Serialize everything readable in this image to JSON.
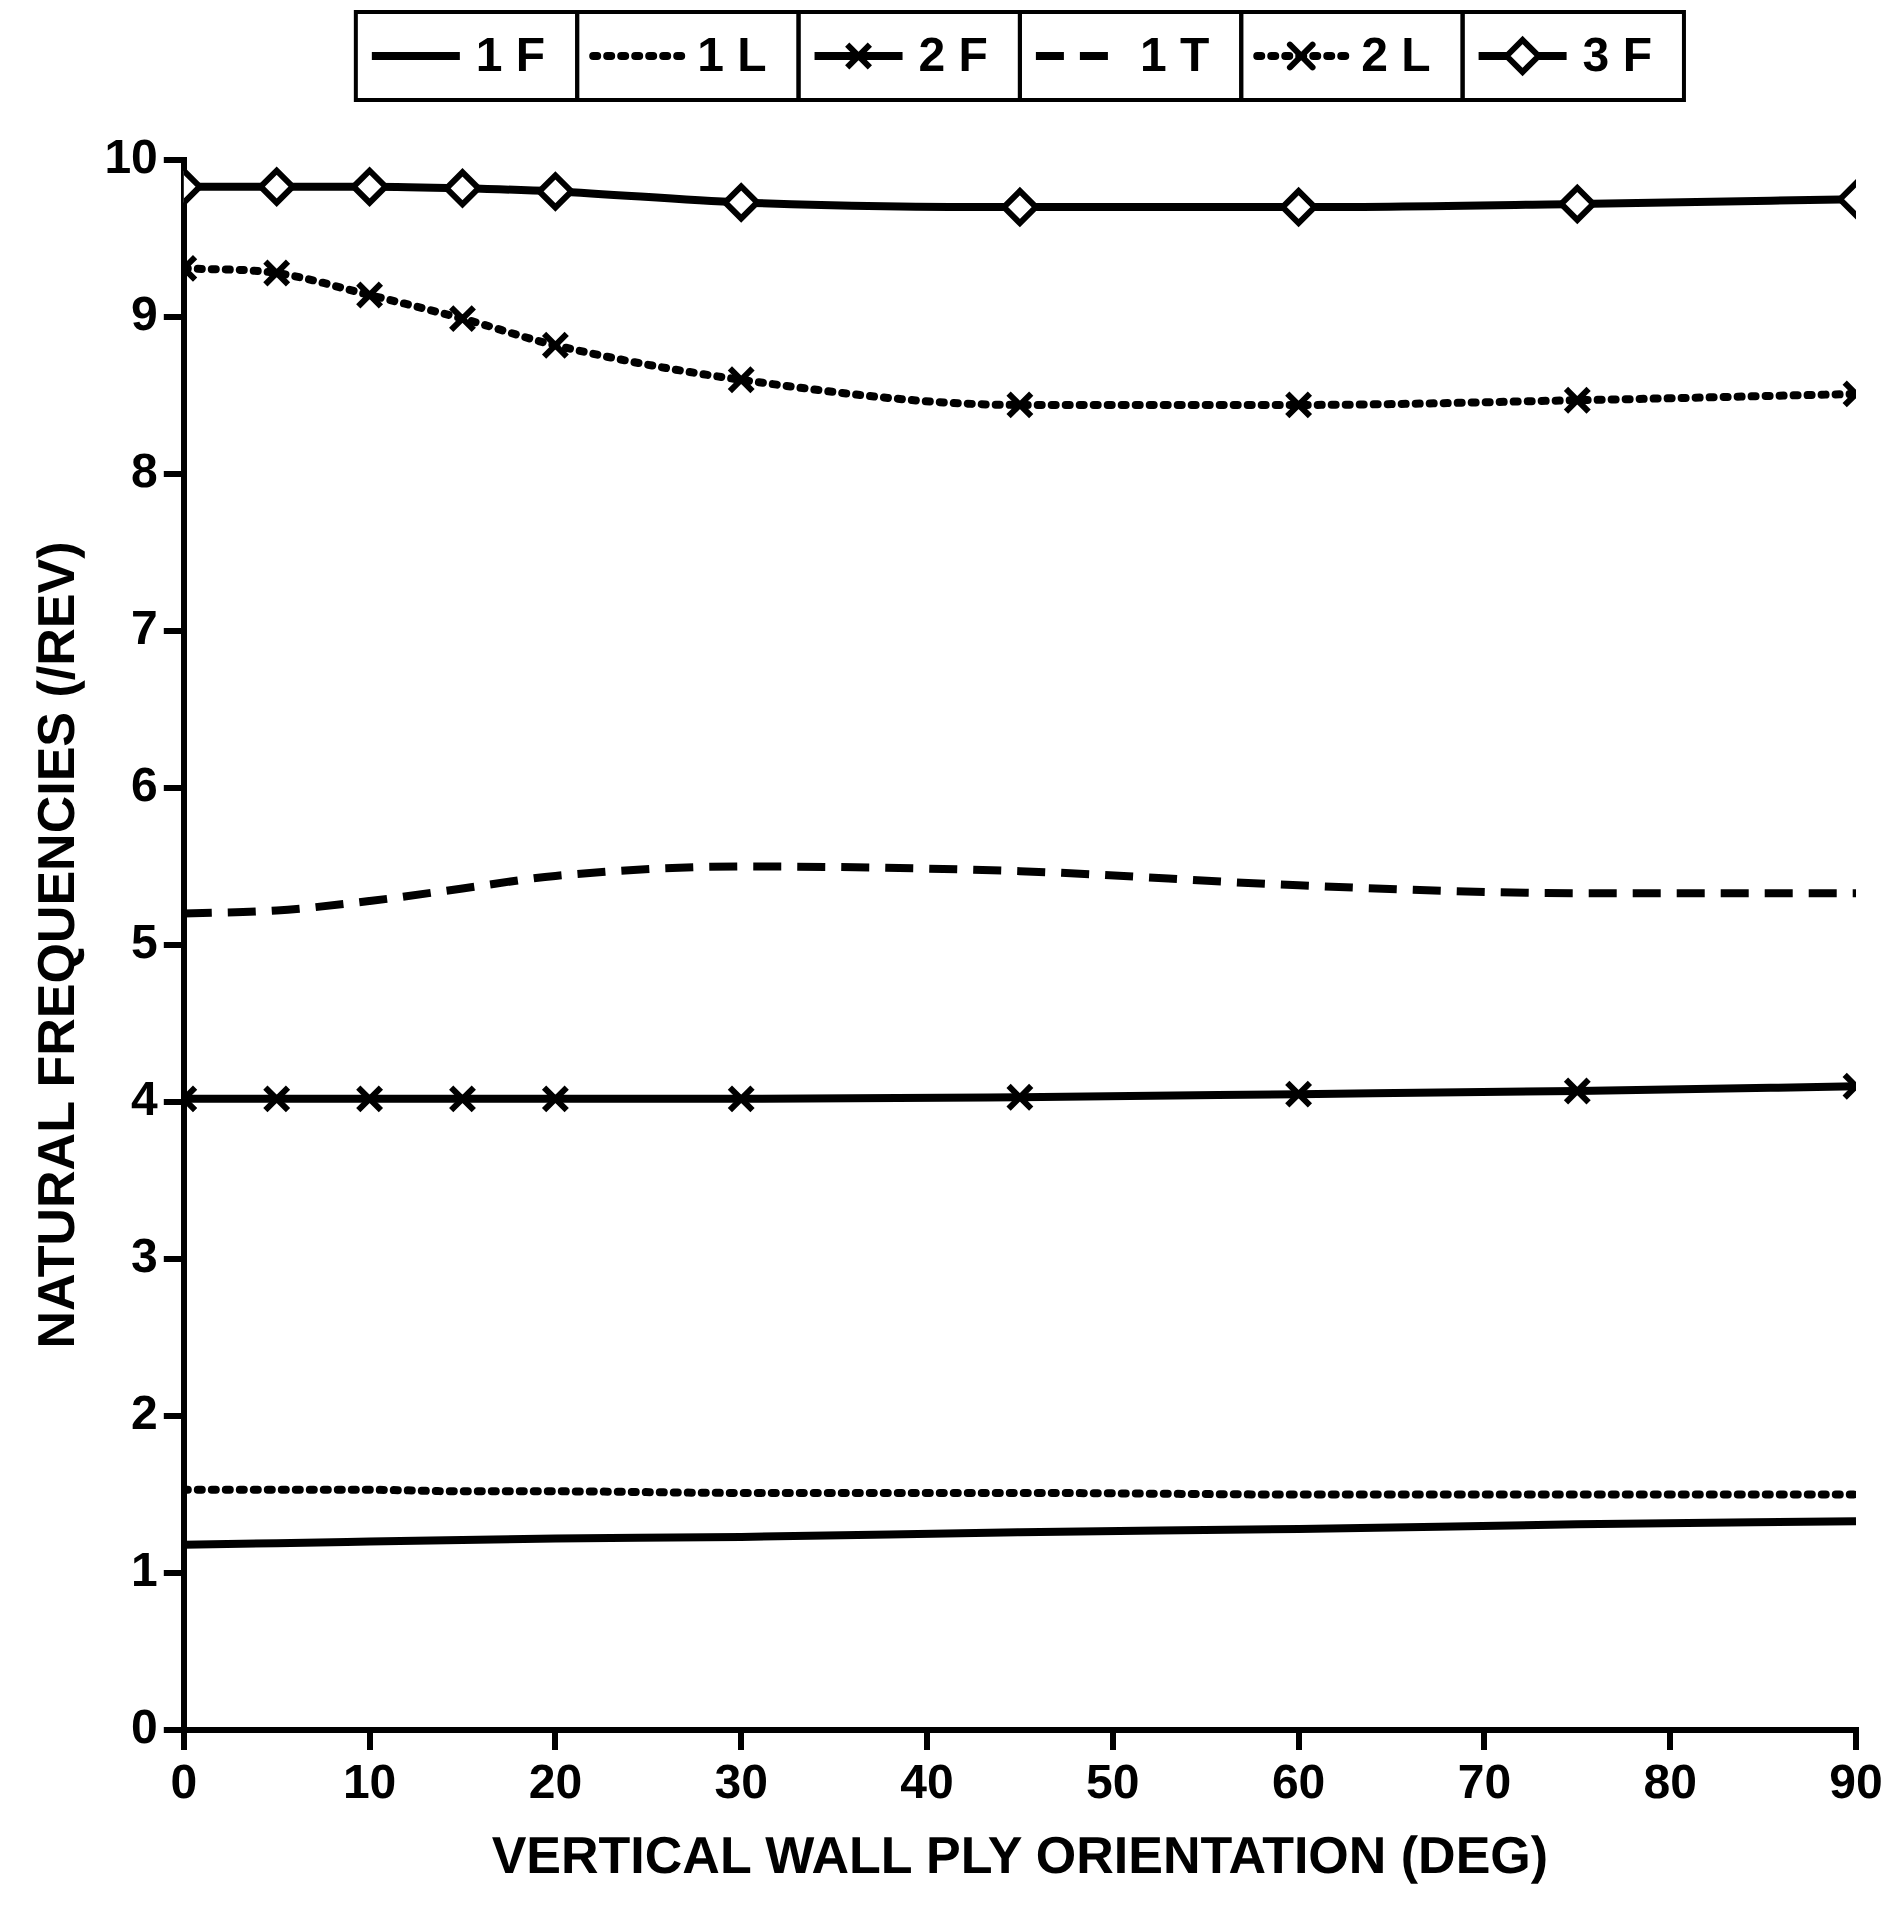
{
  "chart_data": {
    "type": "line",
    "xlabel": "VERTICAL WALL PLY ORIENTATION (DEG)",
    "ylabel": "NATURAL FREQUENCIES (/REV)",
    "x": [
      0,
      5,
      10,
      15,
      20,
      30,
      45,
      60,
      75,
      90
    ],
    "xlim": [
      0,
      90
    ],
    "xticks": [
      0,
      10,
      20,
      30,
      40,
      50,
      60,
      70,
      80,
      90
    ],
    "ylim": [
      0,
      10
    ],
    "yticks": [
      0,
      1,
      2,
      3,
      4,
      5,
      6,
      7,
      8,
      9,
      10
    ],
    "grid": false,
    "legend": "top",
    "series": [
      {
        "name": "1 F",
        "color": "#000000",
        "line_style": "solid",
        "marker": "none",
        "values": [
          1.18,
          1.19,
          1.2,
          1.21,
          1.22,
          1.23,
          1.26,
          1.28,
          1.31,
          1.33
        ]
      },
      {
        "name": "1 L",
        "color": "#000000",
        "line_style": "dotted",
        "marker": "none",
        "values": [
          1.53,
          1.53,
          1.53,
          1.52,
          1.52,
          1.51,
          1.51,
          1.5,
          1.5,
          1.5
        ]
      },
      {
        "name": "2 F",
        "color": "#000000",
        "line_style": "solid",
        "marker": "cross",
        "values": [
          4.02,
          4.02,
          4.02,
          4.02,
          4.02,
          4.02,
          4.03,
          4.05,
          4.07,
          4.1
        ]
      },
      {
        "name": "1 T",
        "color": "#000000",
        "line_style": "dashed",
        "marker": "none",
        "values": [
          5.2,
          5.22,
          5.28,
          5.36,
          5.44,
          5.5,
          5.47,
          5.38,
          5.33,
          5.33
        ]
      },
      {
        "name": "2 L",
        "color": "#000000",
        "line_style": "dotted",
        "marker": "cross",
        "values": [
          9.31,
          9.28,
          9.14,
          8.99,
          8.82,
          8.6,
          8.44,
          8.44,
          8.47,
          8.51
        ]
      },
      {
        "name": "3 F",
        "color": "#000000",
        "line_style": "solid",
        "marker": "diamond",
        "values": [
          9.83,
          9.83,
          9.83,
          9.82,
          9.8,
          9.73,
          9.7,
          9.7,
          9.72,
          9.75
        ]
      }
    ]
  }
}
